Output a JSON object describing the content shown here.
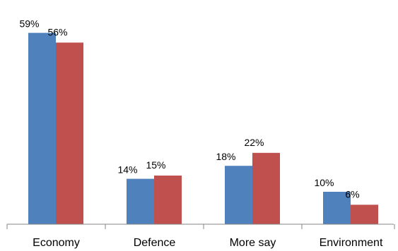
{
  "chart_data": {
    "type": "bar",
    "title": "",
    "xlabel": "",
    "ylabel": "",
    "ylim": [
      0,
      60
    ],
    "grid": false,
    "legend": "none",
    "categories": [
      "Economy",
      "Defence",
      "More say",
      "Environment"
    ],
    "series": [
      {
        "color": "#4F81BD",
        "values": [
          59,
          14,
          18,
          10
        ],
        "labels": [
          "59%",
          "14%",
          "18%",
          "10%"
        ]
      },
      {
        "color": "#C0504D",
        "values": [
          56,
          15,
          22,
          6
        ],
        "labels": [
          "56%",
          "15%",
          "22%",
          "6%"
        ]
      }
    ]
  }
}
